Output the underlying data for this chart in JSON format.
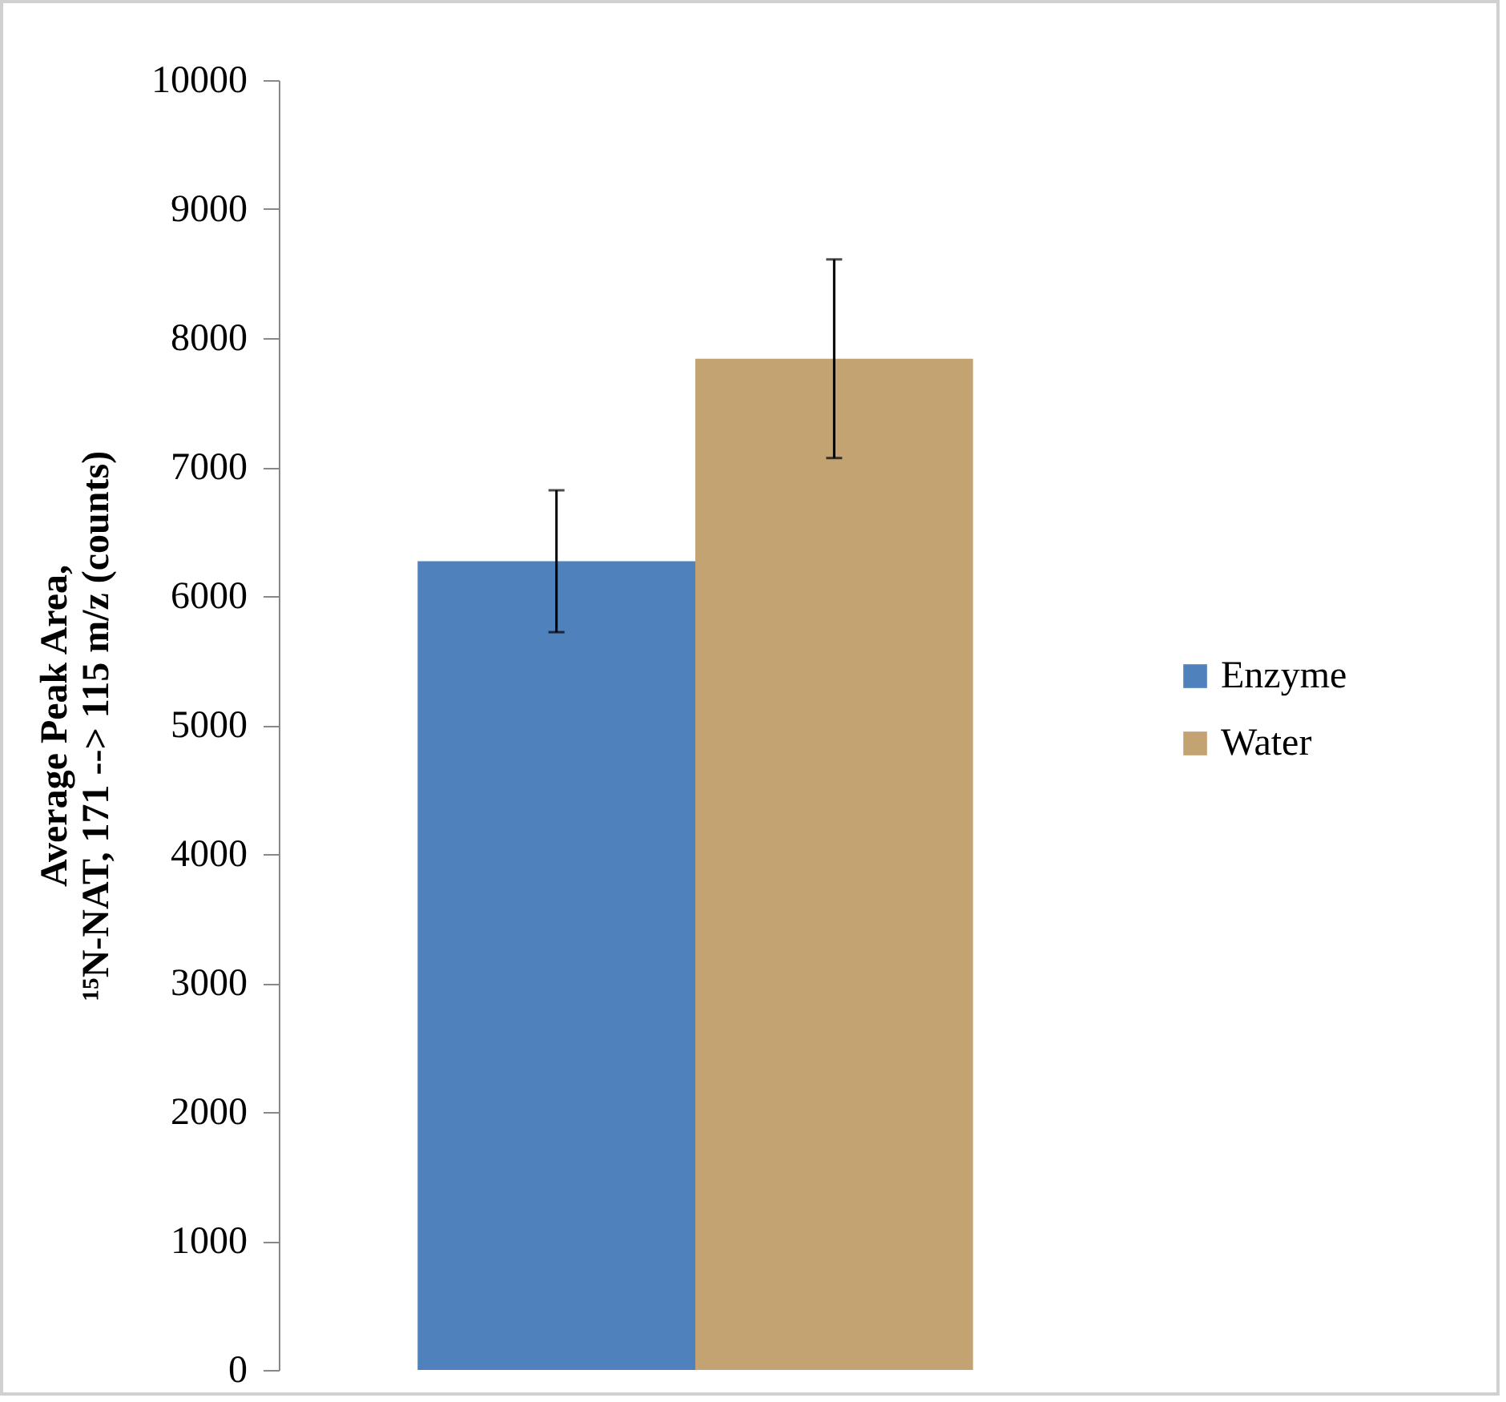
{
  "chart_data": {
    "type": "bar",
    "categories": [
      null
    ],
    "series": [
      {
        "name": "Enzyme",
        "color": "#4f81bd",
        "values": [
          6270
        ],
        "errors": [
          550
        ]
      },
      {
        "name": "Water",
        "color": "#c4a373",
        "values": [
          7840
        ],
        "errors": [
          770
        ]
      }
    ],
    "ylabel": "Average Peak Area,\n¹⁵N-NAT, 171 --> 115 m/z (counts)",
    "ylim": [
      0,
      10000
    ],
    "yticks": [
      0,
      1000,
      2000,
      3000,
      4000,
      5000,
      6000,
      7000,
      8000,
      9000,
      10000
    ],
    "grid": false,
    "legend": "right",
    "tick_labels": "y"
  }
}
